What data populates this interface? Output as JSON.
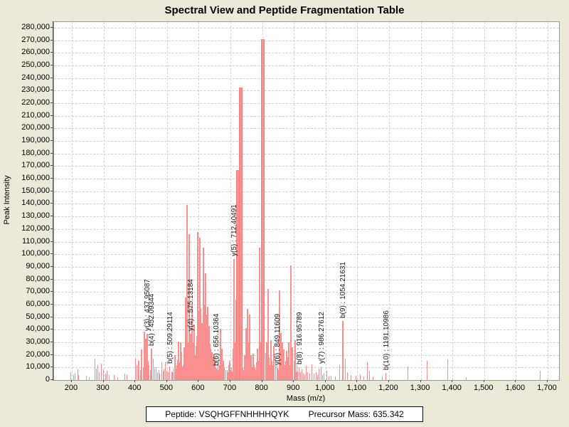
{
  "title": "Spectral View and Peptide Fragmentation Table",
  "status_bar": {
    "peptide": "Peptide: VSQHGFFNHHHHQYK",
    "precursor": "Precursor Mass: 635.342"
  },
  "chart_data": {
    "type": "bar",
    "title": "Spectral View and Peptide Fragmentation Table",
    "xlabel": "Mass (m/z)",
    "ylabel": "Peak Intensity",
    "xlim": [
      144,
      1736
    ],
    "ylim": [
      0,
      284500
    ],
    "grid": true,
    "grid_style": "dashed",
    "bar_color": "#f98f8f",
    "background": "#ffffff",
    "page_background": "#ece9d8",
    "x_ticks": [
      200,
      300,
      400,
      500,
      600,
      700,
      800,
      900,
      1000,
      1100,
      1200,
      1300,
      1400,
      1500,
      1600,
      1700
    ],
    "x_tick_labels": [
      "200",
      "300",
      "400",
      "500",
      "600",
      "700",
      "800",
      "900",
      "1,000",
      "1,100",
      "1,200",
      "1,300",
      "1,400",
      "1,500",
      "1,600",
      "1,700"
    ],
    "y_tick_step": 10000,
    "y_tick_max": 280000,
    "y_tick_labels": [
      "0",
      "10,000",
      "20,000",
      "30,000",
      "40,000",
      "50,000",
      "60,000",
      "70,000",
      "80,000",
      "90,000",
      "100,000",
      "110,000",
      "120,000",
      "130,000",
      "140,000",
      "150,000",
      "160,000",
      "170,000",
      "180,000",
      "190,000",
      "200,000",
      "210,000",
      "220,000",
      "230,000",
      "240,000",
      "250,000",
      "260,000",
      "270,000",
      "280,000"
    ],
    "annotations": [
      {
        "label": "y(3) : 437.95087",
        "mz": 437.95087,
        "intensity": 37000
      },
      {
        "label": "b(4) : 452.09344",
        "mz": 452.09344,
        "intensity": 25000
      },
      {
        "label": "b(5) : 509.29114",
        "mz": 509.29114,
        "intensity": 11000
      },
      {
        "label": "y(4) : 575.13184",
        "mz": 575.13184,
        "intensity": 37000
      },
      {
        "label": "b(6) : 656.10364",
        "mz": 656.10364,
        "intensity": 9000
      },
      {
        "label": "y(5) : 712.40491",
        "mz": 712.40491,
        "intensity": 96000
      },
      {
        "label": "y(6) : 849.11609",
        "mz": 849.11609,
        "intensity": 9500
      },
      {
        "label": "b(8) : 916.95789",
        "mz": 916.95789,
        "intensity": 10200
      },
      {
        "label": "y(7) : 986.27612",
        "mz": 986.27612,
        "intensity": 10700
      },
      {
        "label": "b(9) : 1054.21631",
        "mz": 1054.21631,
        "intensity": 47000
      },
      {
        "label": "b(10) : 1191.10986",
        "mz": 1191.10986,
        "intensity": 5600
      }
    ],
    "peaks": [
      [
        196,
        6500
      ],
      [
        205,
        4000
      ],
      [
        210,
        5500
      ],
      [
        218,
        8300
      ],
      [
        222,
        4000
      ],
      [
        245,
        3200
      ],
      [
        256,
        2500
      ],
      [
        274,
        16800
      ],
      [
        277,
        9000
      ],
      [
        282,
        12000
      ],
      [
        287,
        6000
      ],
      [
        293,
        13000
      ],
      [
        300,
        8300
      ],
      [
        306,
        5000
      ],
      [
        312,
        7400
      ],
      [
        318,
        4000
      ],
      [
        334,
        4000
      ],
      [
        345,
        2500
      ],
      [
        368,
        5000
      ],
      [
        374,
        4000
      ],
      [
        401,
        16800
      ],
      [
        405,
        12000
      ],
      [
        409,
        15000
      ],
      [
        413,
        15800
      ],
      [
        417,
        8000
      ],
      [
        420,
        24300
      ],
      [
        425,
        10000
      ],
      [
        428,
        38500
      ],
      [
        433,
        32800
      ],
      [
        437.95087,
        37000
      ],
      [
        441,
        15000
      ],
      [
        444,
        12000
      ],
      [
        448,
        8000
      ],
      [
        452.09344,
        25000
      ],
      [
        457,
        17000
      ],
      [
        461,
        9000
      ],
      [
        465,
        10000
      ],
      [
        470,
        6000
      ],
      [
        474,
        8000
      ],
      [
        478,
        5000
      ],
      [
        484,
        14000
      ],
      [
        488,
        7000
      ],
      [
        491,
        9000
      ],
      [
        495,
        14100
      ],
      [
        500,
        7500
      ],
      [
        505,
        6000
      ],
      [
        509.29114,
        11000
      ],
      [
        514,
        7000
      ],
      [
        517,
        6500
      ],
      [
        520,
        9000
      ],
      [
        523,
        12000
      ],
      [
        525,
        20000
      ],
      [
        528,
        9000
      ],
      [
        530,
        12000
      ],
      [
        533,
        16000
      ],
      [
        536,
        30500
      ],
      [
        539,
        14000
      ],
      [
        542,
        30000
      ],
      [
        545,
        22000
      ],
      [
        547,
        18000
      ],
      [
        549,
        10000
      ],
      [
        551,
        12000
      ],
      [
        554,
        26200
      ],
      [
        556,
        18000
      ],
      [
        558,
        65800
      ],
      [
        560,
        35000
      ],
      [
        563,
        139000
      ],
      [
        566,
        30000
      ],
      [
        568,
        20000
      ],
      [
        571,
        116100
      ],
      [
        573,
        28000
      ],
      [
        575.13184,
        37000
      ],
      [
        578,
        25000
      ],
      [
        580,
        60100
      ],
      [
        583,
        30000
      ],
      [
        586,
        44100
      ],
      [
        589,
        20000
      ],
      [
        592,
        27200
      ],
      [
        594,
        35000
      ],
      [
        596,
        40000
      ],
      [
        598,
        117600
      ],
      [
        601,
        55000
      ],
      [
        603,
        112900
      ],
      [
        606,
        57300
      ],
      [
        609,
        35000
      ],
      [
        611,
        45000
      ],
      [
        614,
        105000
      ],
      [
        617,
        60000
      ],
      [
        619,
        40000
      ],
      [
        621,
        85000
      ],
      [
        624,
        52000
      ],
      [
        627,
        30000
      ],
      [
        629,
        58300
      ],
      [
        631,
        35000
      ],
      [
        633,
        43200
      ],
      [
        636,
        29000
      ],
      [
        638,
        25000
      ],
      [
        641,
        22000
      ],
      [
        643,
        15000
      ],
      [
        645,
        18000
      ],
      [
        648,
        20000
      ],
      [
        650,
        14000
      ],
      [
        652,
        15000
      ],
      [
        654,
        10000
      ],
      [
        656.10364,
        9000
      ],
      [
        659,
        12000
      ],
      [
        661,
        8000
      ],
      [
        663,
        18000
      ],
      [
        665,
        12000
      ],
      [
        668,
        41000
      ],
      [
        671,
        25000
      ],
      [
        674,
        25000
      ],
      [
        676,
        15000
      ],
      [
        678,
        15000
      ],
      [
        681,
        10000
      ],
      [
        685,
        8000
      ],
      [
        689,
        8000
      ],
      [
        692,
        6000
      ],
      [
        694,
        12000
      ],
      [
        697,
        16000
      ],
      [
        700,
        14000
      ],
      [
        702,
        8000
      ],
      [
        704,
        10000
      ],
      [
        706,
        7000
      ],
      [
        708,
        18000
      ],
      [
        710,
        25000
      ],
      [
        712.40491,
        96000
      ],
      [
        714,
        20000
      ],
      [
        716,
        30000
      ],
      [
        719,
        63900
      ],
      [
        722,
        166800
      ],
      [
        724,
        30000
      ],
      [
        726,
        40000
      ],
      [
        728,
        20000
      ],
      [
        730,
        232400
      ],
      [
        732,
        25000
      ],
      [
        734,
        25000
      ],
      [
        737,
        15000
      ],
      [
        739,
        10000
      ],
      [
        741,
        8000
      ],
      [
        743,
        12000
      ],
      [
        745,
        20000
      ],
      [
        747,
        15000
      ],
      [
        749,
        41300
      ],
      [
        751,
        25000
      ],
      [
        753,
        56400
      ],
      [
        755,
        20000
      ],
      [
        757,
        30000
      ],
      [
        760,
        52000
      ],
      [
        762,
        18000
      ],
      [
        764,
        20000
      ],
      [
        767,
        15000
      ],
      [
        769,
        10000
      ],
      [
        771,
        20900
      ],
      [
        773,
        12000
      ],
      [
        775,
        12000
      ],
      [
        778,
        10000
      ],
      [
        780,
        8000
      ],
      [
        782,
        14000
      ],
      [
        784,
        10000
      ],
      [
        786,
        25000
      ],
      [
        788,
        15000
      ],
      [
        791,
        105400
      ],
      [
        793,
        20000
      ],
      [
        795,
        30000
      ],
      [
        799,
        270800
      ],
      [
        801,
        35000
      ],
      [
        803,
        20000
      ],
      [
        805,
        12000
      ],
      [
        807,
        15000
      ],
      [
        810,
        10000
      ],
      [
        812,
        21500
      ],
      [
        815,
        30000
      ],
      [
        818,
        72400
      ],
      [
        820,
        15000
      ],
      [
        822,
        18000
      ],
      [
        825,
        12000
      ],
      [
        827,
        31900
      ],
      [
        829,
        10000
      ],
      [
        831,
        15000
      ],
      [
        834,
        12000
      ],
      [
        836,
        27200
      ],
      [
        839,
        10000
      ],
      [
        842,
        17700
      ],
      [
        846,
        12000
      ],
      [
        849.11609,
        9500
      ],
      [
        851,
        8000
      ],
      [
        854,
        71100
      ],
      [
        856,
        15000
      ],
      [
        859,
        37500
      ],
      [
        861,
        12000
      ],
      [
        864,
        30000
      ],
      [
        866,
        10000
      ],
      [
        869,
        24300
      ],
      [
        871,
        12000
      ],
      [
        873,
        15000
      ],
      [
        877,
        23000
      ],
      [
        879,
        10000
      ],
      [
        881,
        18000
      ],
      [
        884,
        30000
      ],
      [
        887,
        12000
      ],
      [
        890,
        91200
      ],
      [
        893,
        10000
      ],
      [
        896,
        26200
      ],
      [
        900,
        15000
      ],
      [
        902,
        8000
      ],
      [
        905,
        31900
      ],
      [
        908,
        6000
      ],
      [
        910,
        12000
      ],
      [
        913,
        7000
      ],
      [
        916.95789,
        10200
      ],
      [
        921,
        6000
      ],
      [
        925,
        8300
      ],
      [
        930,
        5000
      ],
      [
        934,
        4000
      ],
      [
        939,
        11500
      ],
      [
        944,
        6000
      ],
      [
        950,
        5000
      ],
      [
        957,
        12500
      ],
      [
        963,
        5000
      ],
      [
        970,
        6000
      ],
      [
        975,
        4000
      ],
      [
        980,
        9200
      ],
      [
        986.27612,
        10700
      ],
      [
        991,
        4000
      ],
      [
        995,
        5700
      ],
      [
        1004,
        7400
      ],
      [
        1010,
        3000
      ],
      [
        1017,
        3400
      ],
      [
        1030,
        3000
      ],
      [
        1044,
        12400
      ],
      [
        1054.21631,
        47000
      ],
      [
        1062,
        17000
      ],
      [
        1070,
        6000
      ],
      [
        1080,
        4000
      ],
      [
        1095,
        3500
      ],
      [
        1109,
        4500
      ],
      [
        1120,
        3000
      ],
      [
        1131,
        14100
      ],
      [
        1139,
        7400
      ],
      [
        1150,
        3000
      ],
      [
        1178,
        3000
      ],
      [
        1191.10986,
        5600
      ],
      [
        1259,
        10700
      ],
      [
        1321,
        15300
      ],
      [
        1385,
        16600
      ],
      [
        1443,
        2000
      ],
      [
        1676,
        7400
      ]
    ]
  }
}
